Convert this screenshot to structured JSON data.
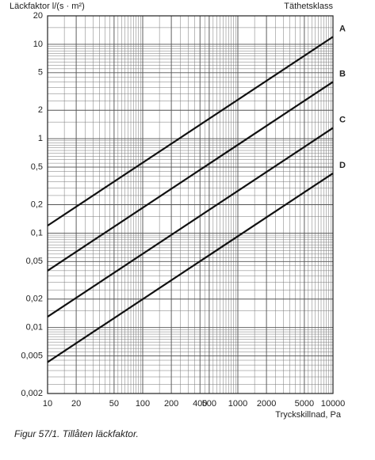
{
  "chart_data": {
    "type": "line",
    "ylabel": "Läckfaktor l/(s · m²)",
    "legend_title": "Täthetsklass",
    "xlabel": "Tryckskillnad, Pa",
    "caption": "Figur 57/1. Tillåten läckfaktor.",
    "xlog": true,
    "ylog": true,
    "grid": true,
    "minor_grid": true,
    "color": "#111",
    "x": [
      10,
      10000
    ],
    "series": [
      {
        "name": "A",
        "color": "#111",
        "values": [
          0.12,
          12
        ]
      },
      {
        "name": "B",
        "color": "#111",
        "values": [
          0.04,
          4
        ]
      },
      {
        "name": "C",
        "color": "#111",
        "values": [
          0.013,
          1.3
        ]
      },
      {
        "name": "D",
        "color": "#111",
        "values": [
          0.0043,
          0.43
        ]
      }
    ],
    "xlim": [
      10,
      10000
    ],
    "xticks": [
      10,
      20,
      50,
      100,
      200,
      400,
      500,
      1000,
      2000,
      5000,
      10000
    ],
    "ylim": [
      0.002,
      20
    ],
    "yticks": [
      20,
      10,
      5,
      2,
      1,
      {
        "value": 0.5,
        "label": "0,5"
      },
      {
        "value": 0.2,
        "label": "0,2"
      },
      {
        "value": 0.1,
        "label": "0,1"
      },
      {
        "value": 0.05,
        "label": "0,05"
      },
      {
        "value": 0.02,
        "label": "0,02"
      },
      {
        "value": 0.01,
        "label": "0,01"
      },
      {
        "value": 0.005,
        "label": "0,005"
      },
      {
        "value": 0.002,
        "label": "0,002"
      }
    ]
  }
}
